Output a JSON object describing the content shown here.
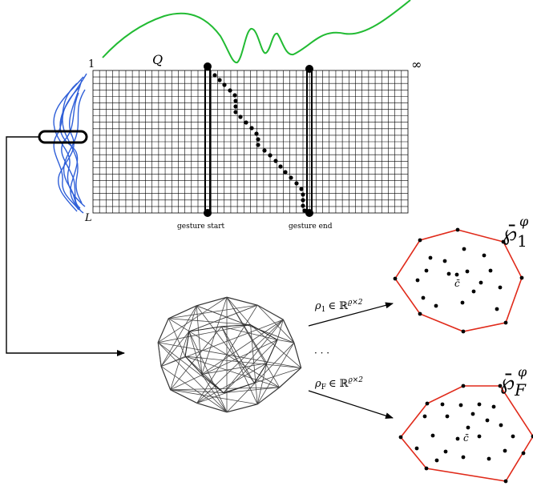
{
  "grid": {
    "row_start_label": "1",
    "row_end_label": "L",
    "query_label": "Q",
    "col_end_label": "∞",
    "gesture_start_label": "gesture start",
    "gesture_end_label": "gesture end"
  },
  "projections": {
    "top": {
      "symbol": "ρ",
      "subscript": "1",
      "space": "∈ ℝ",
      "superscript": "ϱ×2"
    },
    "bottom": {
      "symbol": "ρ",
      "subscript": "F",
      "space": "∈ ℝ",
      "superscript": "ϱ×2"
    },
    "ellipsis": "· · ·"
  },
  "hulls": {
    "top": {
      "symbol": "℘̄",
      "subscript": "1",
      "superscript": "φ",
      "centroid_label": "c̄"
    },
    "bottom": {
      "symbol": "℘̄",
      "subscript": "F",
      "superscript": "φ",
      "centroid_label": "c̄"
    }
  },
  "colors": {
    "signal": "#22bb33",
    "curves": "#2f5fd8",
    "hull": "#e02a1a",
    "ink": "#000000"
  },
  "icons": {
    "polytope": "wireframe-polyhedron-icon",
    "arrows": "arrow-icon"
  }
}
